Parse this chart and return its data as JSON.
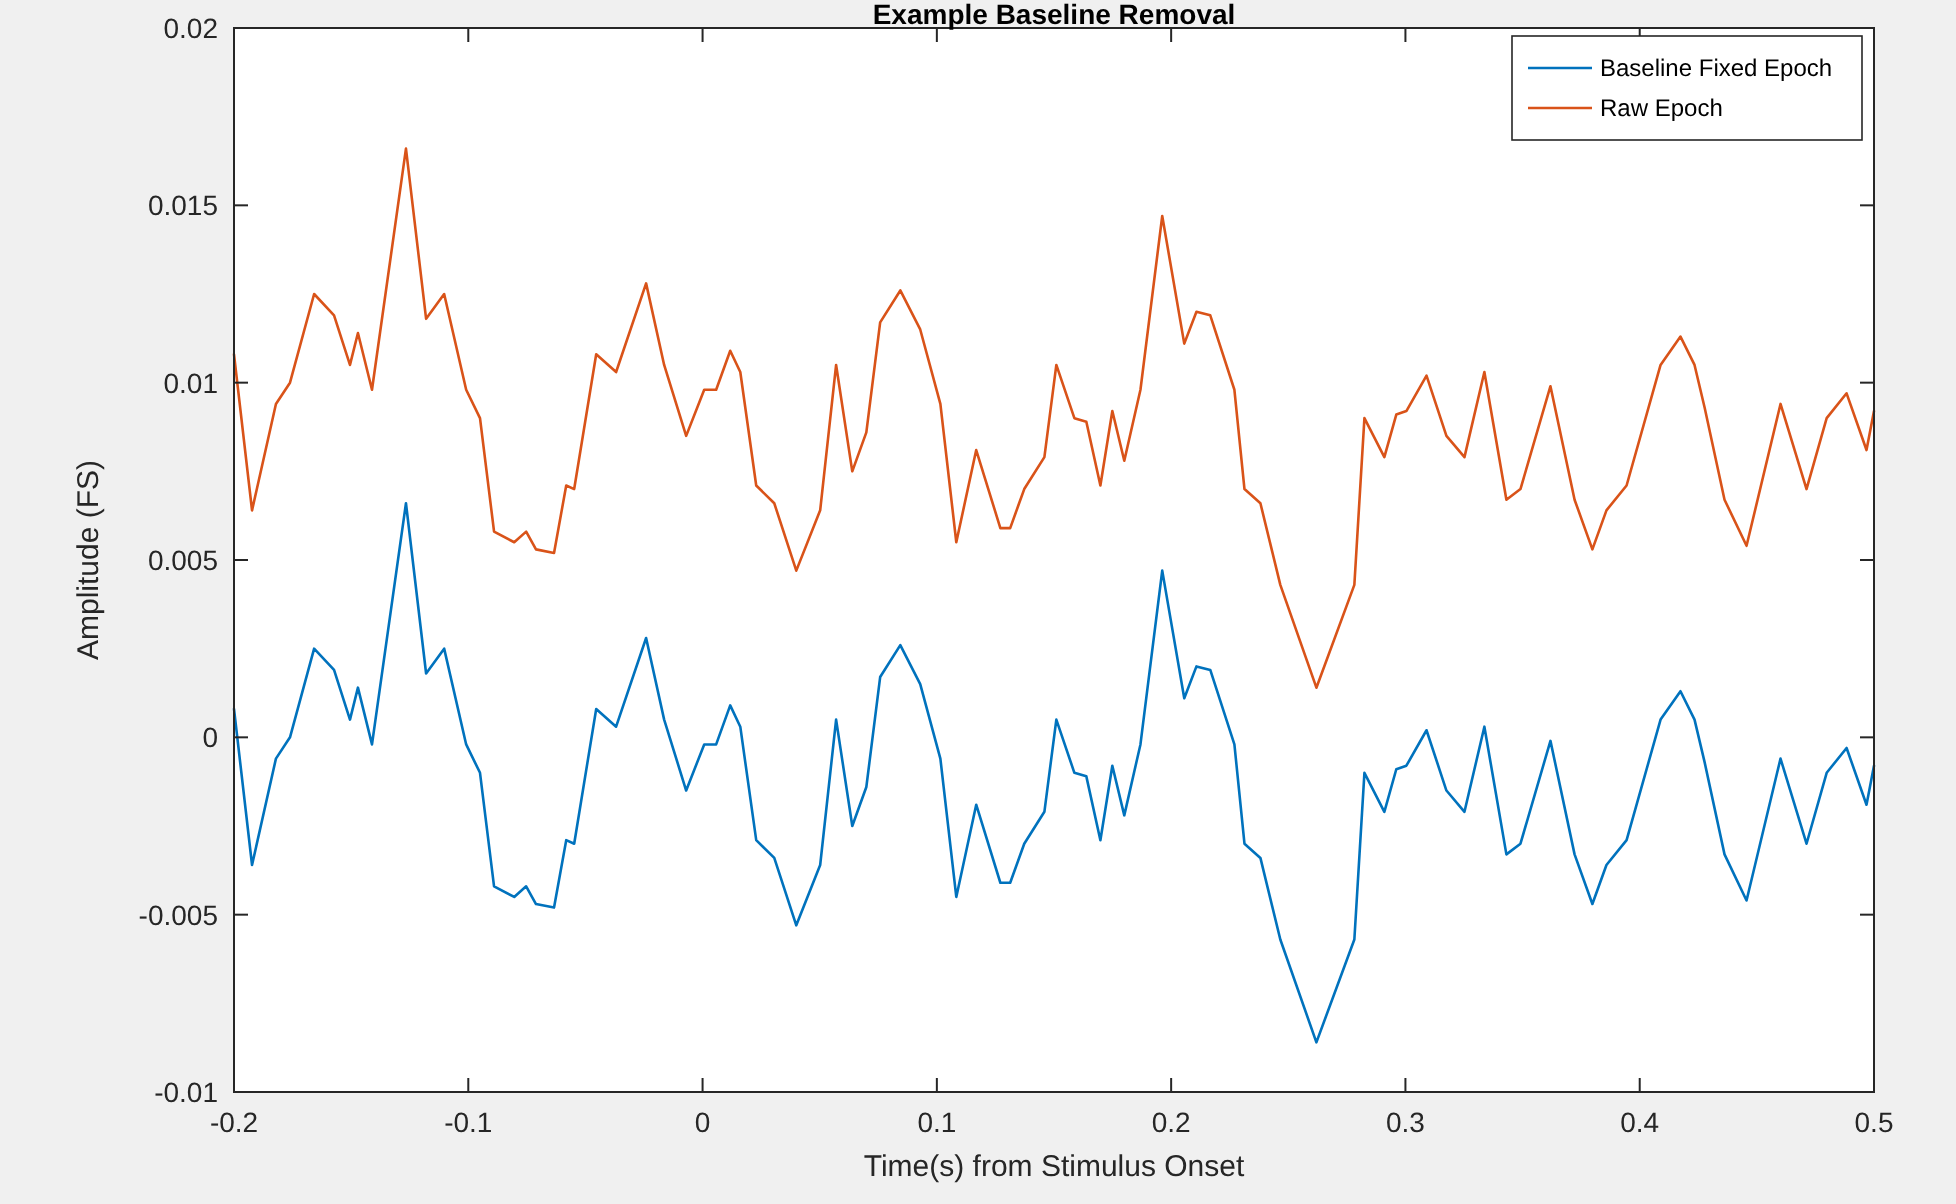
{
  "chart_data": {
    "type": "line",
    "title": "Example Baseline Removal",
    "xlabel": "Time(s) from Stimulus Onset",
    "ylabel": "Amplitude (FS)",
    "x": [
      -0.2,
      -0.1923,
      -0.1821,
      -0.1761,
      -0.1658,
      -0.1573,
      -0.1505,
      -0.1471,
      -0.1411,
      -0.1266,
      -0.118,
      -0.1103,
      -0.1009,
      -0.095,
      -0.089,
      -0.0804,
      -0.0753,
      -0.0711,
      -0.0634,
      -0.0582,
      -0.0548,
      -0.0454,
      -0.0369,
      -0.0241,
      -0.0164,
      -0.007,
      0.0007,
      0.0058,
      0.0118,
      0.0161,
      0.0229,
      0.0306,
      0.04,
      0.0502,
      0.057,
      0.0639,
      0.0699,
      0.0758,
      0.0844,
      0.0929,
      0.1015,
      0.1083,
      0.1168,
      0.1271,
      0.1313,
      0.1373,
      0.1459,
      0.151,
      0.1587,
      0.1638,
      0.1698,
      0.1749,
      0.18,
      0.1869,
      0.1962,
      0.2056,
      0.2108,
      0.2167,
      0.227,
      0.2313,
      0.2381,
      0.2466,
      0.262,
      0.2782,
      0.2825,
      0.291,
      0.2961,
      0.3004,
      0.309,
      0.3175,
      0.3252,
      0.3337,
      0.3431,
      0.3491,
      0.3619,
      0.3722,
      0.3798,
      0.3858,
      0.3944,
      0.4089,
      0.4174,
      0.4234,
      0.4277,
      0.4362,
      0.4456,
      0.4601,
      0.4712,
      0.4798,
      0.4883,
      0.4968,
      0.5
    ],
    "series": [
      {
        "name": "Baseline Fixed Epoch",
        "color": "#0072bd",
        "values": [
          0.0008,
          -0.0036,
          -0.0006,
          0,
          0.0025,
          0.0019,
          0.0005,
          0.0014,
          -0.0002,
          0.0066,
          0.0018,
          0.0025,
          -0.0002,
          -0.001,
          -0.0042,
          -0.0045,
          -0.0042,
          -0.0047,
          -0.0048,
          -0.0029,
          -0.003,
          0.0008,
          0.0003,
          0.0028,
          0.0005,
          -0.0015,
          -0.0002,
          -0.0002,
          0.0009,
          0.0003,
          -0.0029,
          -0.0034,
          -0.0053,
          -0.0036,
          0.0005,
          -0.0025,
          -0.0014,
          0.0017,
          0.0026,
          0.0015,
          -0.0006,
          -0.0045,
          -0.0019,
          -0.0041,
          -0.0041,
          -0.003,
          -0.0021,
          0.0005,
          -0.001,
          -0.0011,
          -0.0029,
          -0.0008,
          -0.0022,
          -0.0002,
          0.0047,
          0.0011,
          0.002,
          0.0019,
          -0.0002,
          -0.003,
          -0.0034,
          -0.0057,
          -0.0086,
          -0.0057,
          -0.001,
          -0.0021,
          -0.0009,
          -0.0008,
          0.0002,
          -0.0015,
          -0.0021,
          0.0003,
          -0.0033,
          -0.003,
          -0.0001,
          -0.0033,
          -0.0047,
          -0.0036,
          -0.0029,
          0.0005,
          0.0013,
          0.0005,
          -0.0007,
          -0.0033,
          -0.0046,
          -0.0006,
          -0.003,
          -0.001,
          -0.0003,
          -0.0019,
          -0.0008
        ]
      },
      {
        "name": "Raw Epoch",
        "color": "#d95319",
        "values": [
          0.0108,
          0.0064,
          0.0094,
          0.01,
          0.0125,
          0.0119,
          0.0105,
          0.0114,
          0.0098,
          0.0166,
          0.0118,
          0.0125,
          0.0098,
          0.009,
          0.0058,
          0.0055,
          0.0058,
          0.0053,
          0.0052,
          0.0071,
          0.007,
          0.0108,
          0.0103,
          0.0128,
          0.0105,
          0.0085,
          0.0098,
          0.0098,
          0.0109,
          0.0103,
          0.0071,
          0.0066,
          0.0047,
          0.0064,
          0.0105,
          0.0075,
          0.0086,
          0.0117,
          0.0126,
          0.0115,
          0.0094,
          0.0055,
          0.0081,
          0.0059,
          0.0059,
          0.007,
          0.0079,
          0.0105,
          0.009,
          0.0089,
          0.0071,
          0.0092,
          0.0078,
          0.0098,
          0.0147,
          0.0111,
          0.012,
          0.0119,
          0.0098,
          0.007,
          0.0066,
          0.0043,
          0.0014,
          0.0043,
          0.009,
          0.0079,
          0.0091,
          0.0092,
          0.0102,
          0.0085,
          0.0079,
          0.0103,
          0.0067,
          0.007,
          0.0099,
          0.0067,
          0.0053,
          0.0064,
          0.0071,
          0.0105,
          0.0113,
          0.0105,
          0.0093,
          0.0067,
          0.0054,
          0.0094,
          0.007,
          0.009,
          0.0097,
          0.0081,
          0.0092
        ]
      }
    ],
    "xlim": [
      -0.2,
      0.5
    ],
    "xticks": [
      -0.2,
      -0.1,
      0,
      0.1,
      0.2,
      0.3,
      0.4,
      0.5
    ],
    "ylim": [
      -0.01,
      0.02
    ],
    "yticks": [
      -0.01,
      -0.005,
      0,
      0.005,
      0.01,
      0.015,
      0.02
    ],
    "grid": false,
    "legend": "top right",
    "marker": "none",
    "line_style": "solid"
  }
}
